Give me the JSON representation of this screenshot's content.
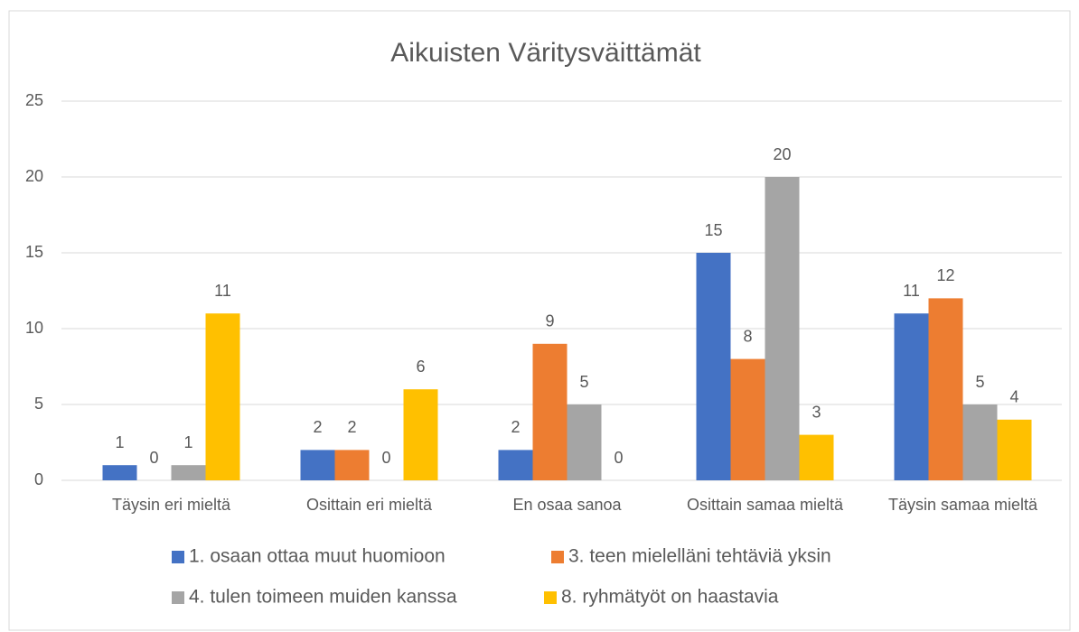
{
  "chart_data": {
    "type": "bar",
    "title": "Aikuisten Väritysväittämät",
    "categories": [
      "Täysin eri mieltä",
      "Osittain eri mieltä",
      "En osaa sanoa",
      "Osittain samaa mieltä",
      "Täysin samaa mieltä"
    ],
    "series": [
      {
        "name": "1. osaan ottaa muut huomioon",
        "color": "#4472c4",
        "values": [
          1,
          2,
          2,
          15,
          11
        ]
      },
      {
        "name": "3. teen mielelläni tehtäviä yksin",
        "color": "#ed7d31",
        "values": [
          0,
          2,
          9,
          8,
          12
        ]
      },
      {
        "name": "4. tulen toimeen muiden kanssa",
        "color": "#a5a5a5",
        "values": [
          1,
          0,
          5,
          20,
          5
        ]
      },
      {
        "name": "8. ryhmätyöt on haastavia",
        "color": "#ffc000",
        "values": [
          11,
          6,
          0,
          3,
          4
        ]
      }
    ],
    "ylim": [
      0,
      25
    ],
    "yticks": [
      0,
      5,
      10,
      15,
      20,
      25
    ],
    "grid": true,
    "legend": "bottom"
  }
}
